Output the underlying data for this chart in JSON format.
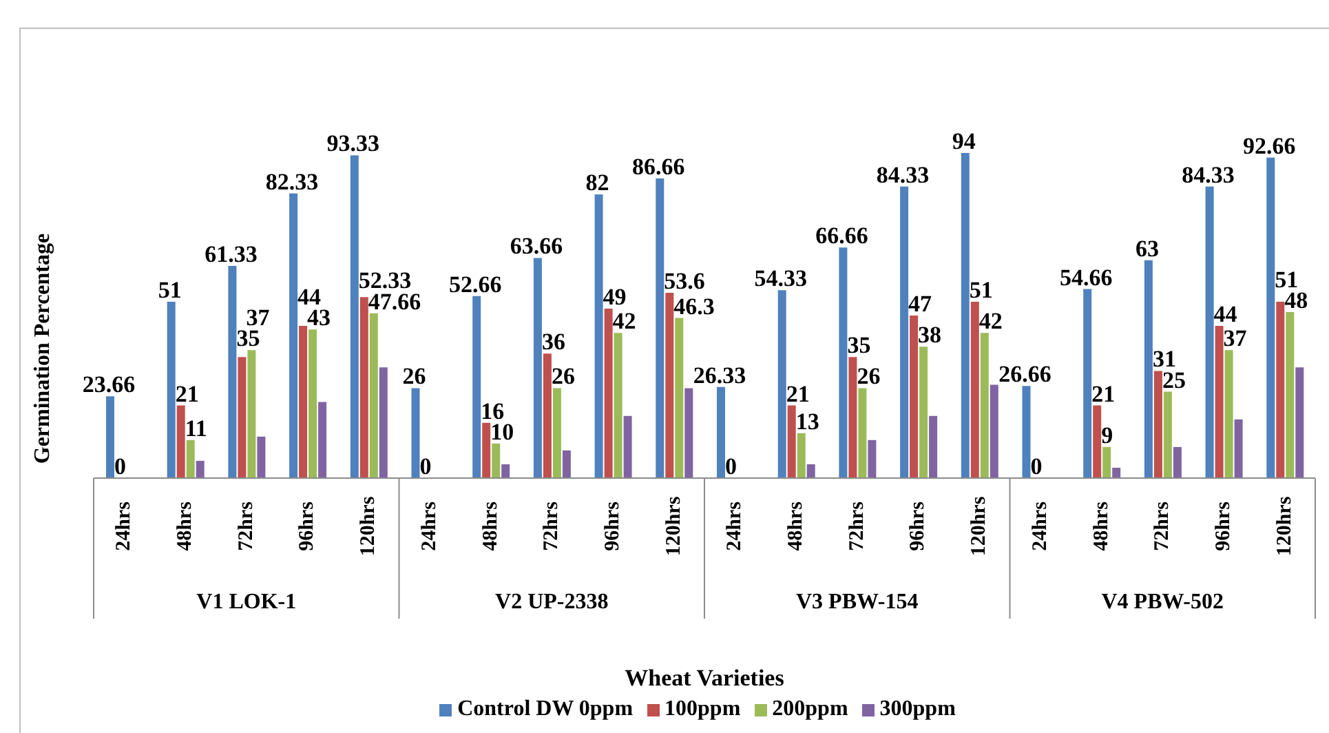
{
  "chart_data": {
    "type": "bar",
    "xlabel": "Wheat Varieties",
    "ylabel": "Germination Percentage",
    "categories": [
      "24hrs",
      "48hrs",
      "72hrs",
      "96hrs",
      "120hrs",
      "24hrs",
      "48hrs",
      "72hrs",
      "96hrs",
      "120hrs",
      "24hrs",
      "48hrs",
      "72hrs",
      "96hrs",
      "120hrs",
      "24hrs",
      "48hrs",
      "72hrs",
      "96hrs",
      "120hrs"
    ],
    "annotations": [
      "V1 LOK-1",
      "V2 UP-2338",
      "V3 PBW-154",
      "V4 PBW-502"
    ],
    "series": [
      {
        "name": "Control DW 0ppm",
        "color": "#4f81bd",
        "values": [
          23.66,
          51,
          61.33,
          82.33,
          93.33,
          26,
          52.66,
          63.66,
          82,
          86.66,
          26.33,
          54.33,
          66.66,
          84.33,
          94,
          26.66,
          54.66,
          63,
          84.33,
          92.66
        ],
        "value_labels": [
          "23.66",
          "51",
          "61.33",
          "82.33",
          "93.33",
          "26",
          "52.66",
          "63.66",
          "82",
          "86.66",
          "26.33",
          "54.33",
          "66.66",
          "84.33",
          "94",
          "26.66",
          "54.66",
          "63",
          "84.33",
          "92.66"
        ]
      },
      {
        "name": "100ppm",
        "color": "#c0504d",
        "values": [
          0,
          21,
          35,
          44,
          52.33,
          0,
          16,
          36,
          49,
          53.6,
          0,
          21,
          35,
          47,
          51,
          0,
          21,
          31,
          44,
          51
        ],
        "value_labels": [
          "0",
          "21",
          "35",
          "44",
          "52.33",
          "0",
          "16",
          "36",
          "49",
          "53.6",
          "0",
          "21",
          "35",
          "47",
          "51",
          "0",
          "21",
          "31",
          "44",
          "51"
        ]
      },
      {
        "name": "200ppm",
        "color": "#9bbb59",
        "values": [
          0,
          11,
          37,
          43,
          47.66,
          0,
          10,
          26,
          42,
          46.3,
          0,
          13,
          26,
          38,
          42,
          0,
          9,
          25,
          37,
          48
        ],
        "value_labels": [
          null,
          "11",
          "37",
          "43",
          "47.66",
          null,
          "10",
          "26",
          "42",
          "46.3",
          null,
          "13",
          "26",
          "38",
          "42",
          null,
          "9",
          "25",
          "37",
          "48"
        ]
      },
      {
        "name": "300ppm",
        "color": "#8064a2",
        "values": [
          0,
          5,
          12,
          22,
          32,
          0,
          4,
          8,
          18,
          26,
          0,
          4,
          11,
          18,
          27,
          0,
          3,
          9,
          17,
          32
        ]
      }
    ],
    "legend": "bottom",
    "tick_labels": "x"
  }
}
